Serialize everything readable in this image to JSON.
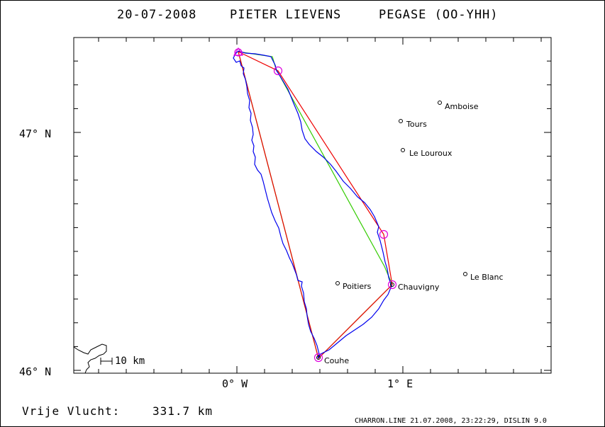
{
  "title": {
    "date": "20-07-2008",
    "pilot": "PIETER LIEVENS",
    "glider": "PEGASE (OO-YHH)"
  },
  "map": {
    "lon_range": [
      -1.0,
      1.85
    ],
    "lat_range": [
      45.99,
      47.4
    ],
    "y_axis_labels": [
      {
        "lat": 47.0,
        "text": "47° N"
      },
      {
        "lat": 46.0,
        "text": "46° N"
      }
    ],
    "x_axis_labels": [
      {
        "lon": 0.0,
        "text": "0° W"
      },
      {
        "lon": 1.0,
        "text": "1° E"
      }
    ],
    "places": [
      {
        "name": "Amboise",
        "lon": 1.22,
        "lat": 47.13
      },
      {
        "name": "Tours",
        "lon": 0.99,
        "lat": 47.05
      },
      {
        "name": "Le Louroux",
        "lon": 1.0,
        "lat": 46.92
      },
      {
        "name": "Poitiers",
        "lon": 0.6,
        "lat": 46.37
      },
      {
        "name": "Le Blanc",
        "lon": 1.38,
        "lat": 46.41
      },
      {
        "name": "Chauvigny",
        "lon": 0.93,
        "lat": 46.36
      },
      {
        "name": "Couhe",
        "lon": 0.48,
        "lat": 46.05
      }
    ],
    "turnpoints": [
      {
        "lon": 0.0,
        "lat": 47.34
      },
      {
        "lon": 0.24,
        "lat": 47.26
      },
      {
        "lon": 0.87,
        "lat": 46.57
      },
      {
        "lon": 0.93,
        "lat": 46.36
      },
      {
        "lon": 0.48,
        "lat": 46.05
      }
    ],
    "scale_label": "10 km",
    "colors": {
      "track": "#0000ee",
      "task": "#ee0000",
      "optimized": "#33cc00",
      "turnpoint": "#dd00dd"
    }
  },
  "footer": {
    "distance_label": "Vrije Vlucht:",
    "distance_value": "331.7 km",
    "software": "CHARRON.LINE 21.07.2008, 23:22:29, DISLIN 9.0"
  }
}
